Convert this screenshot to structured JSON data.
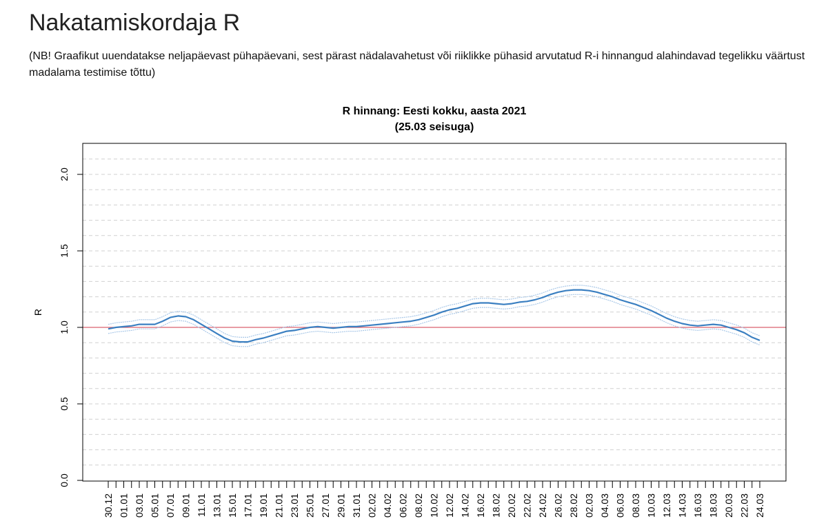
{
  "page": {
    "title": "Nakatamiskordaja R",
    "note": "(NB! Graafikut uuendatakse neljapäevast pühapäevani, sest pärast nädalavahetust või riiklikke pühasid arvutatud R-i hinnangud alahindavad tegelikku väärtust madalama testimise tõttu)"
  },
  "chart_data": {
    "type": "line",
    "title_line1": "R hinnang: Eesti kokku, aasta 2021",
    "title_line2": "(25.03 seisuga)",
    "xlabel": "",
    "ylabel": "R",
    "ylim": [
      0,
      2.2
    ],
    "yticks": [
      "0.0",
      "0.5",
      "1.0",
      "1.5",
      "2.0"
    ],
    "ytick_values": [
      0,
      0.5,
      1.0,
      1.5,
      2.0
    ],
    "grid_step": 0.1,
    "grid": true,
    "reference_line": 1.0,
    "x_tick_labels": [
      "30.12",
      "01.01",
      "03.01",
      "05.01",
      "07.01",
      "09.01",
      "11.01",
      "13.01",
      "15.01",
      "17.01",
      "19.01",
      "21.01",
      "23.01",
      "25.01",
      "27.01",
      "29.01",
      "31.01",
      "02.02",
      "04.02",
      "06.02",
      "08.02",
      "10.02",
      "12.02",
      "14.02",
      "16.02",
      "18.02",
      "20.02",
      "22.02",
      "24.02",
      "26.02",
      "28.02",
      "02.03",
      "04.03",
      "06.03",
      "08.03",
      "10.03",
      "12.03",
      "14.03",
      "16.03",
      "18.03",
      "20.03",
      "22.03",
      "24.03"
    ],
    "ci_halfwidth": 0.03,
    "colors": {
      "line": "#3a7fc1",
      "ci": "#a9c8e8",
      "reference": "#d9606e",
      "grid": "#d0d0d0"
    },
    "series": [
      {
        "name": "R",
        "values": [
          0.99,
          1.0,
          1.005,
          1.01,
          1.02,
          1.02,
          1.02,
          1.04,
          1.065,
          1.075,
          1.07,
          1.05,
          1.02,
          0.99,
          0.96,
          0.93,
          0.91,
          0.905,
          0.905,
          0.92,
          0.93,
          0.945,
          0.96,
          0.975,
          0.98,
          0.99,
          1.0,
          1.005,
          1.0,
          0.995,
          1.0,
          1.005,
          1.005,
          1.01,
          1.015,
          1.02,
          1.025,
          1.03,
          1.035,
          1.04,
          1.05,
          1.065,
          1.08,
          1.1,
          1.115,
          1.125,
          1.14,
          1.155,
          1.16,
          1.16,
          1.155,
          1.15,
          1.155,
          1.165,
          1.17,
          1.18,
          1.195,
          1.215,
          1.23,
          1.24,
          1.245,
          1.245,
          1.24,
          1.23,
          1.215,
          1.2,
          1.18,
          1.165,
          1.15,
          1.13,
          1.11,
          1.085,
          1.06,
          1.04,
          1.025,
          1.015,
          1.01,
          1.015,
          1.02,
          1.015,
          1.0,
          0.985,
          0.965,
          0.935,
          0.915
        ]
      }
    ]
  }
}
